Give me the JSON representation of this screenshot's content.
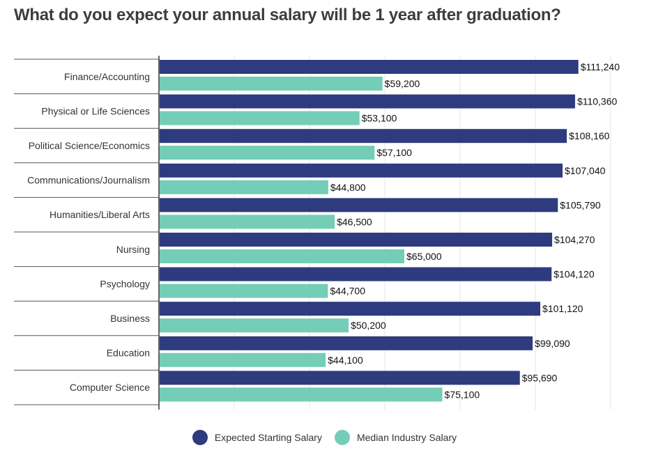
{
  "chart_data": {
    "type": "bar",
    "orientation": "horizontal",
    "title": "What do you expect your annual salary will be 1 year after graduation?",
    "categories": [
      "Finance/Accounting",
      "Physical or Life Sciences",
      "Political Science/Economics",
      "Communications/Journalism",
      "Humanities/Liberal Arts",
      "Nursing",
      "Psychology",
      "Business",
      "Education",
      "Computer Science"
    ],
    "series": [
      {
        "name": "Expected Starting Salary",
        "color": "#2e3b7e",
        "values": [
          111240,
          110360,
          108160,
          107040,
          105790,
          104270,
          104120,
          101120,
          99090,
          95690
        ],
        "labels": [
          "$111,240",
          "$110,360",
          "$108,160",
          "$107,040",
          "$105,790",
          "$104,270",
          "$104,120",
          "$101,120",
          "$99,090",
          "$95,690"
        ]
      },
      {
        "name": "Median Industry Salary",
        "color": "#74cdb6",
        "values": [
          59200,
          53100,
          57100,
          44800,
          46500,
          65000,
          44700,
          50200,
          44100,
          75100
        ],
        "labels": [
          "$59,200",
          "$53,100",
          "$57,100",
          "$44,800",
          "$46,500",
          "$65,000",
          "$44,700",
          "$50,200",
          "$44,100",
          "$75,100"
        ]
      }
    ],
    "xlim": [
      0,
      120000
    ],
    "xgrid_step": 20000,
    "grid": true,
    "legend": "bottom-center"
  }
}
